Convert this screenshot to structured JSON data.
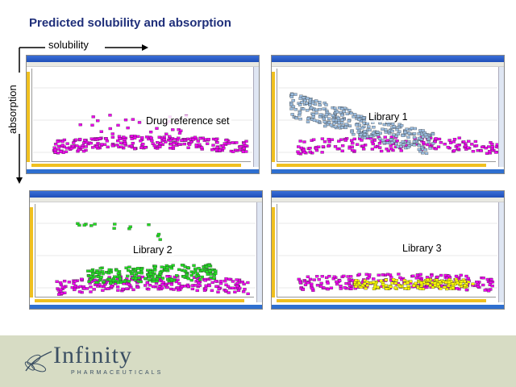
{
  "slide": {
    "title": "Predicted solubility and absorption",
    "x_axis_label": "solubility",
    "y_axis_label": "absorption"
  },
  "panels": [
    {
      "label": "Drug reference set",
      "series": [
        "magenta"
      ]
    },
    {
      "label": "Library 1",
      "series": [
        "magenta",
        "lightblue"
      ]
    },
    {
      "label": "Library 2",
      "series": [
        "magenta",
        "green"
      ]
    },
    {
      "label": "Library 3",
      "series": [
        "magenta",
        "yellow"
      ]
    }
  ],
  "colors": {
    "title": "#1f2f7a",
    "magenta": "#ee00ee",
    "lightblue": "#9bbde0",
    "green": "#22dd22",
    "yellow": "#ffff00",
    "footer": "#d7dcc4",
    "logo": "#3b4f63"
  },
  "footer": {
    "logo_text": "Infinity",
    "logo_subtext": "PHARMACEUTICALS"
  }
}
